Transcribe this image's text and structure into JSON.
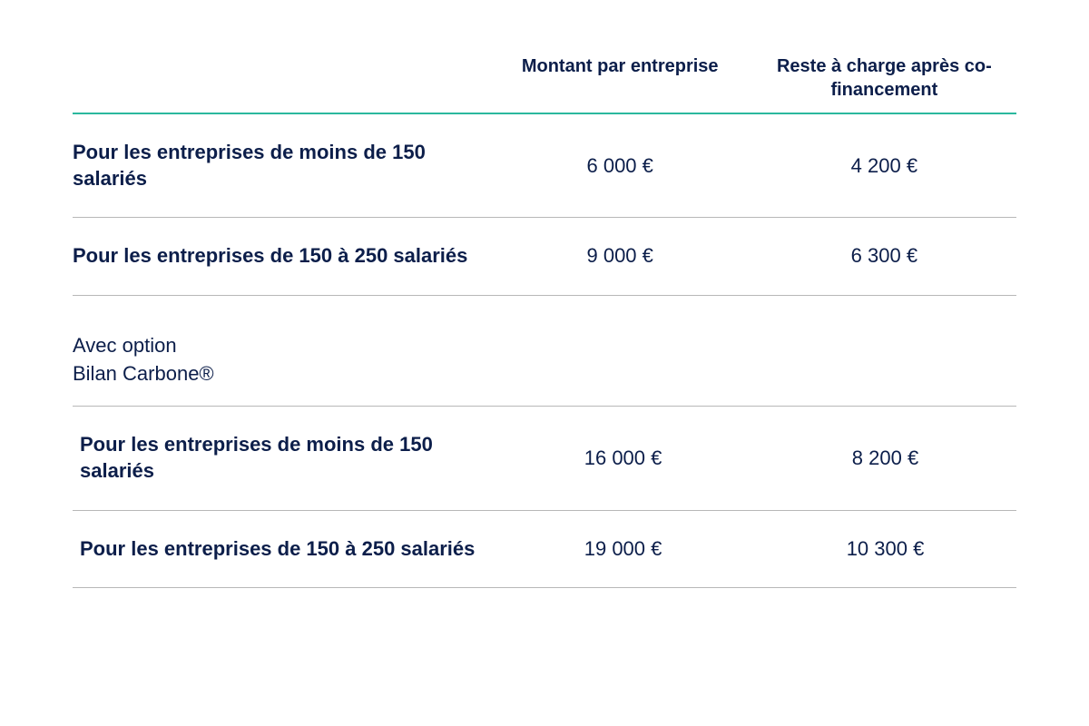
{
  "table": {
    "type": "table",
    "headers": {
      "col1": "",
      "col2": "Montant par entreprise",
      "col3": "Reste à charge après co-financement"
    },
    "section1": {
      "rows": [
        {
          "desc": "Pour les entreprises de moins de 150 salariés",
          "amount": "6 000 €",
          "remaining": "4 200 €"
        },
        {
          "desc": "Pour les entreprises de 150 à 250 salariés",
          "amount": "9 000 €",
          "remaining": "6 300 €"
        }
      ]
    },
    "section2": {
      "label": "Avec option\nBilan Carbone®",
      "rows": [
        {
          "desc": "Pour les entreprises de moins de 150 salariés",
          "amount": "16 000 €",
          "remaining": "8 200 €"
        },
        {
          "desc": "Pour les entreprises de 150 à 250 salariés",
          "amount": "19 000 €",
          "remaining": "10 300 €"
        }
      ]
    },
    "styling": {
      "text_color": "#0c1e4a",
      "header_border_color": "#2bb89e",
      "row_border_color": "#b8b8b8",
      "background_color": "#ffffff",
      "header_fontsize": 20,
      "body_fontsize": 22,
      "header_fontweight": 700,
      "desc_fontweight": 700,
      "value_fontweight": 400,
      "col_widths": [
        "44%",
        "28%",
        "28%"
      ]
    }
  }
}
